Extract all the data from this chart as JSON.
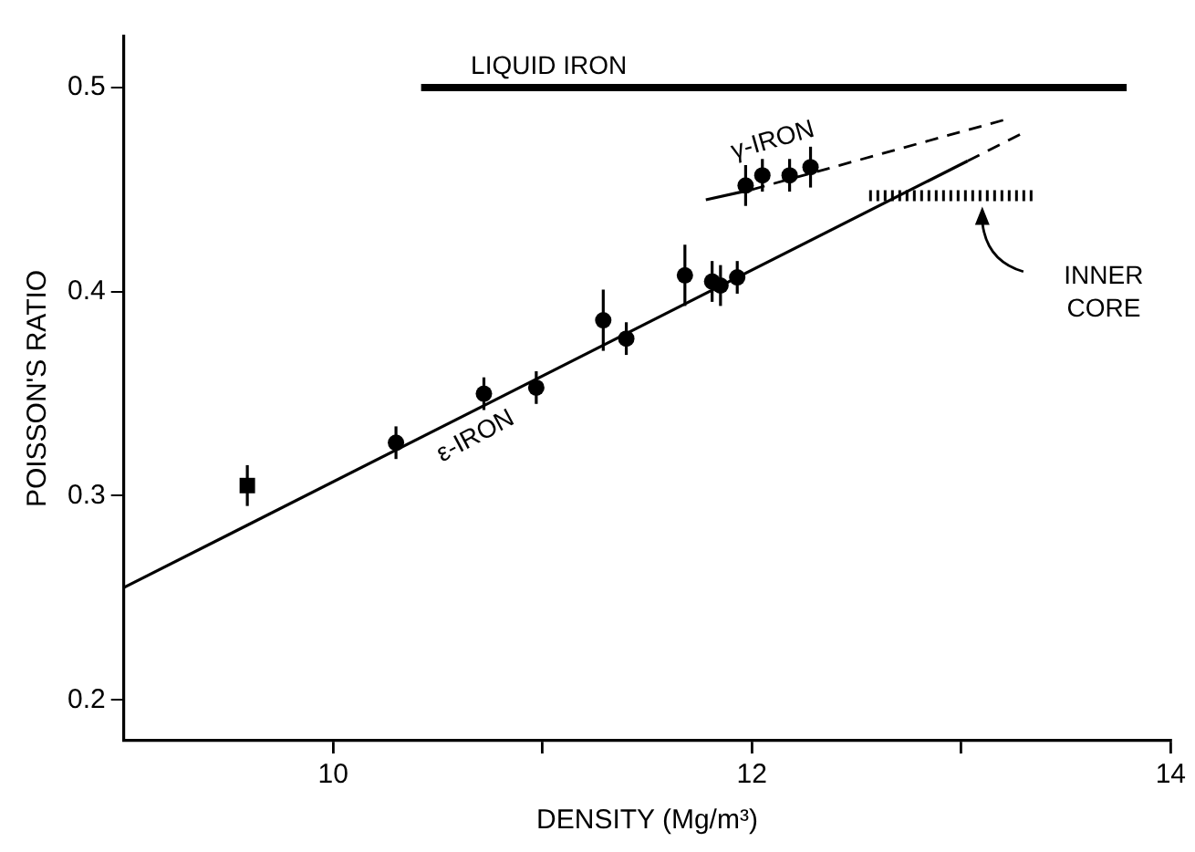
{
  "chart_data": {
    "type": "scatter",
    "xlabel": "DENSITY (Mg/m³)",
    "ylabel": "POISSON'S RATIO",
    "xlim": [
      9,
      14
    ],
    "ylim": [
      0.18,
      0.525
    ],
    "xticks": [
      10,
      {
        "value": 11,
        "label": null
      },
      12,
      {
        "value": 13,
        "label": null
      },
      14
    ],
    "yticks": [
      0.2,
      0.3,
      0.4,
      0.5
    ],
    "grid": false,
    "legend": false,
    "series": [
      {
        "type": "scatter",
        "marker": "square",
        "color": "#000000",
        "x": [
          9.59
        ],
        "values": [
          0.305
        ],
        "errors": [
          0.01
        ]
      },
      {
        "type": "scatter",
        "marker": "circle",
        "color": "#000000",
        "x": [
          10.3,
          10.72,
          10.97,
          11.29,
          11.4,
          11.68,
          11.81,
          11.85,
          11.93
        ],
        "values": [
          0.326,
          0.35,
          0.353,
          0.386,
          0.377,
          0.408,
          0.405,
          0.403,
          0.407
        ],
        "errors": [
          0.008,
          0.008,
          0.008,
          0.015,
          0.008,
          0.015,
          0.01,
          0.01,
          0.008
        ]
      },
      {
        "type": "scatter",
        "marker": "circle",
        "color": "#000000",
        "x": [
          11.97,
          12.05,
          12.18,
          12.28
        ],
        "values": [
          0.452,
          0.457,
          0.457,
          0.461
        ],
        "errors": [
          0.01,
          0.008,
          0.008,
          0.01
        ]
      },
      {
        "type": "line",
        "marker": "none",
        "line_style": "solid",
        "color": "#000000",
        "x": [
          9,
          13.03
        ],
        "values": [
          0.255,
          0.464
        ]
      },
      {
        "type": "line",
        "marker": "none",
        "line_style": "dashed",
        "color": "#000000",
        "x": [
          13.03,
          13.28
        ],
        "values": [
          0.464,
          0.477
        ]
      },
      {
        "type": "line",
        "marker": "none",
        "line_style": "solid",
        "color": "#000000",
        "x": [
          11.78,
          12.0
        ],
        "values": [
          0.445,
          0.45
        ]
      },
      {
        "type": "line",
        "marker": "none",
        "line_style": "dashed",
        "color": "#000000",
        "x": [
          12.0,
          13.2
        ],
        "values": [
          0.45,
          0.484
        ]
      },
      {
        "type": "line",
        "marker": "none",
        "line_style": "solid",
        "color": "#000000",
        "x": [
          10.42,
          13.79
        ],
        "values": [
          0.5,
          0.5
        ]
      },
      {
        "type": "line",
        "marker": "none",
        "line_style": "dotted",
        "color": "#000000",
        "x": [
          12.56,
          13.34
        ],
        "values": [
          0.447,
          0.447
        ]
      }
    ],
    "annotations": [
      "LIQUID IRON",
      "γ-IRON",
      "ε-IRON",
      "INNER\nCORE"
    ]
  }
}
